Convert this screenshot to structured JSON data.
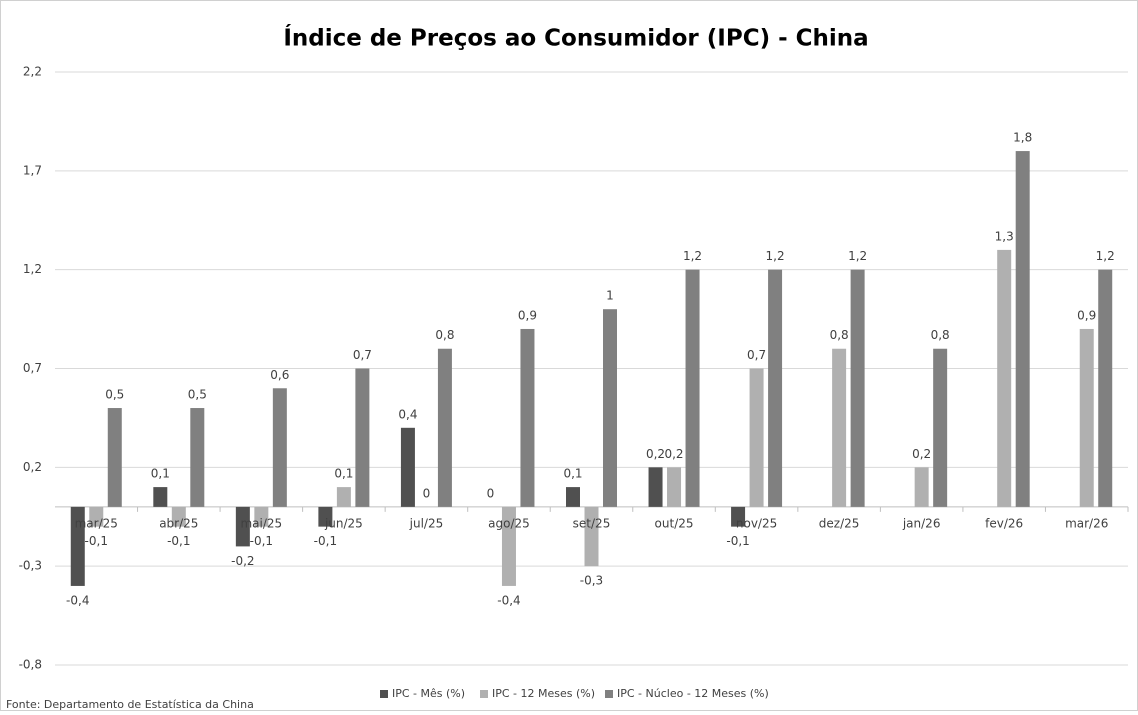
{
  "chart_data": {
    "type": "bar",
    "title": "Índice de Preços ao Consumidor (IPC) - China",
    "source": "Fonte: Departamento de Estatística da China",
    "categories": [
      "mar/25",
      "abr/25",
      "mai/25",
      "jun/25",
      "jul/25",
      "ago/25",
      "set/25",
      "out/25",
      "nov/25",
      "dez/25",
      "jan/26",
      "fev/26",
      "mar/26"
    ],
    "series": [
      {
        "name": "IPC - Mês (%)",
        "color": "#505050",
        "values": [
          -0.4,
          0.1,
          -0.2,
          -0.1,
          0.4,
          0,
          0.1,
          0.2,
          -0.1,
          null,
          null,
          null,
          null
        ],
        "value_labels": [
          "-0,4",
          "0,1",
          "-0,2",
          "-0,1",
          "0,4",
          "0",
          "0,1",
          "0,2",
          "-0,1",
          null,
          null,
          null,
          null
        ]
      },
      {
        "name": "IPC - 12 Meses (%)",
        "color": "#b0b0b0",
        "values": [
          -0.1,
          -0.1,
          -0.1,
          0.1,
          0,
          -0.4,
          -0.3,
          0.2,
          0.7,
          0.8,
          0.2,
          1.3,
          0.9
        ],
        "value_labels": [
          "-0,1",
          "-0,1",
          "-0,1",
          "0,1",
          "0",
          "-0,4",
          "-0,3",
          "0,2",
          "0,7",
          "0,8",
          "0,2",
          "1,3",
          "0,9"
        ]
      },
      {
        "name": "IPC - Núcleo - 12 Meses (%)",
        "color": "#808080",
        "values": [
          0.5,
          0.5,
          0.6,
          0.7,
          0.8,
          0.9,
          1,
          1.2,
          1.2,
          1.2,
          0.8,
          1.8,
          1.2
        ],
        "value_labels": [
          "0,5",
          "0,5",
          "0,6",
          "0,7",
          "0,8",
          "0,9",
          "1",
          "1,2",
          "1,2",
          "1,2",
          "0,8",
          "1,8",
          "1,2"
        ]
      }
    ],
    "ylim": [
      -0.8,
      2.2
    ],
    "yticks": [
      {
        "value": -0.8,
        "label": "-0,8"
      },
      {
        "value": -0.3,
        "label": "-0,3"
      },
      {
        "value": 0.2,
        "label": "0,2"
      },
      {
        "value": 0.7,
        "label": "0,7"
      },
      {
        "value": 1.2,
        "label": "1,2"
      },
      {
        "value": 1.7,
        "label": "1,7"
      },
      {
        "value": 2.2,
        "label": "2,2"
      }
    ],
    "grid": true,
    "legend": "bottom"
  }
}
